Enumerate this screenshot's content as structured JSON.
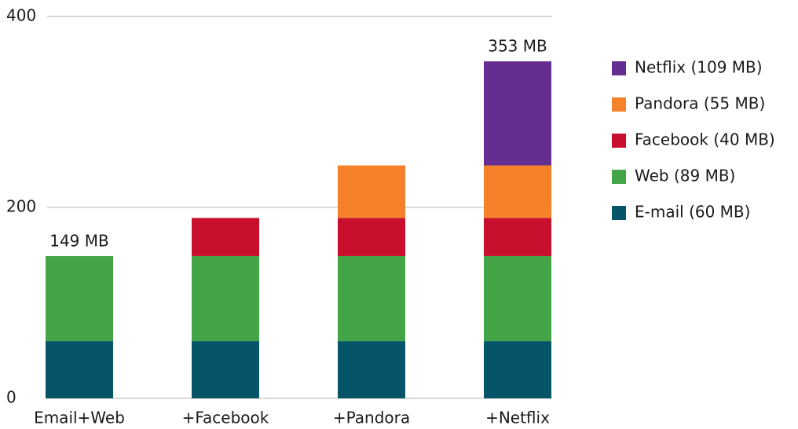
{
  "chart_data": {
    "type": "stacked-bar",
    "categories": [
      "Email+Web",
      "+Facebook",
      "+Pandora",
      "+Netflix"
    ],
    "series": [
      {
        "name": "E-mail (60 MB)",
        "color": "#065468",
        "values": [
          60,
          60,
          60,
          60
        ]
      },
      {
        "name": "Web (89 MB)",
        "color": "#43a548",
        "values": [
          89,
          89,
          89,
          89
        ]
      },
      {
        "name": "Facebook (40 MB)",
        "color": "#c8102e",
        "values": [
          null,
          40,
          40,
          40
        ]
      },
      {
        "name": "Pandora (55 MB)",
        "color": "#f5822a",
        "values": [
          null,
          null,
          55,
          55
        ]
      },
      {
        "name": "Netflix (109 MB)",
        "color": "#662d91",
        "values": [
          null,
          null,
          null,
          109
        ]
      }
    ],
    "totals": [
      149,
      null,
      null,
      353
    ],
    "total_labels": [
      "149 MB",
      null,
      null,
      "353 MB"
    ],
    "ylim": [
      0,
      400
    ],
    "yticks": [
      0,
      200,
      400
    ],
    "grid": true,
    "legend": "right"
  }
}
